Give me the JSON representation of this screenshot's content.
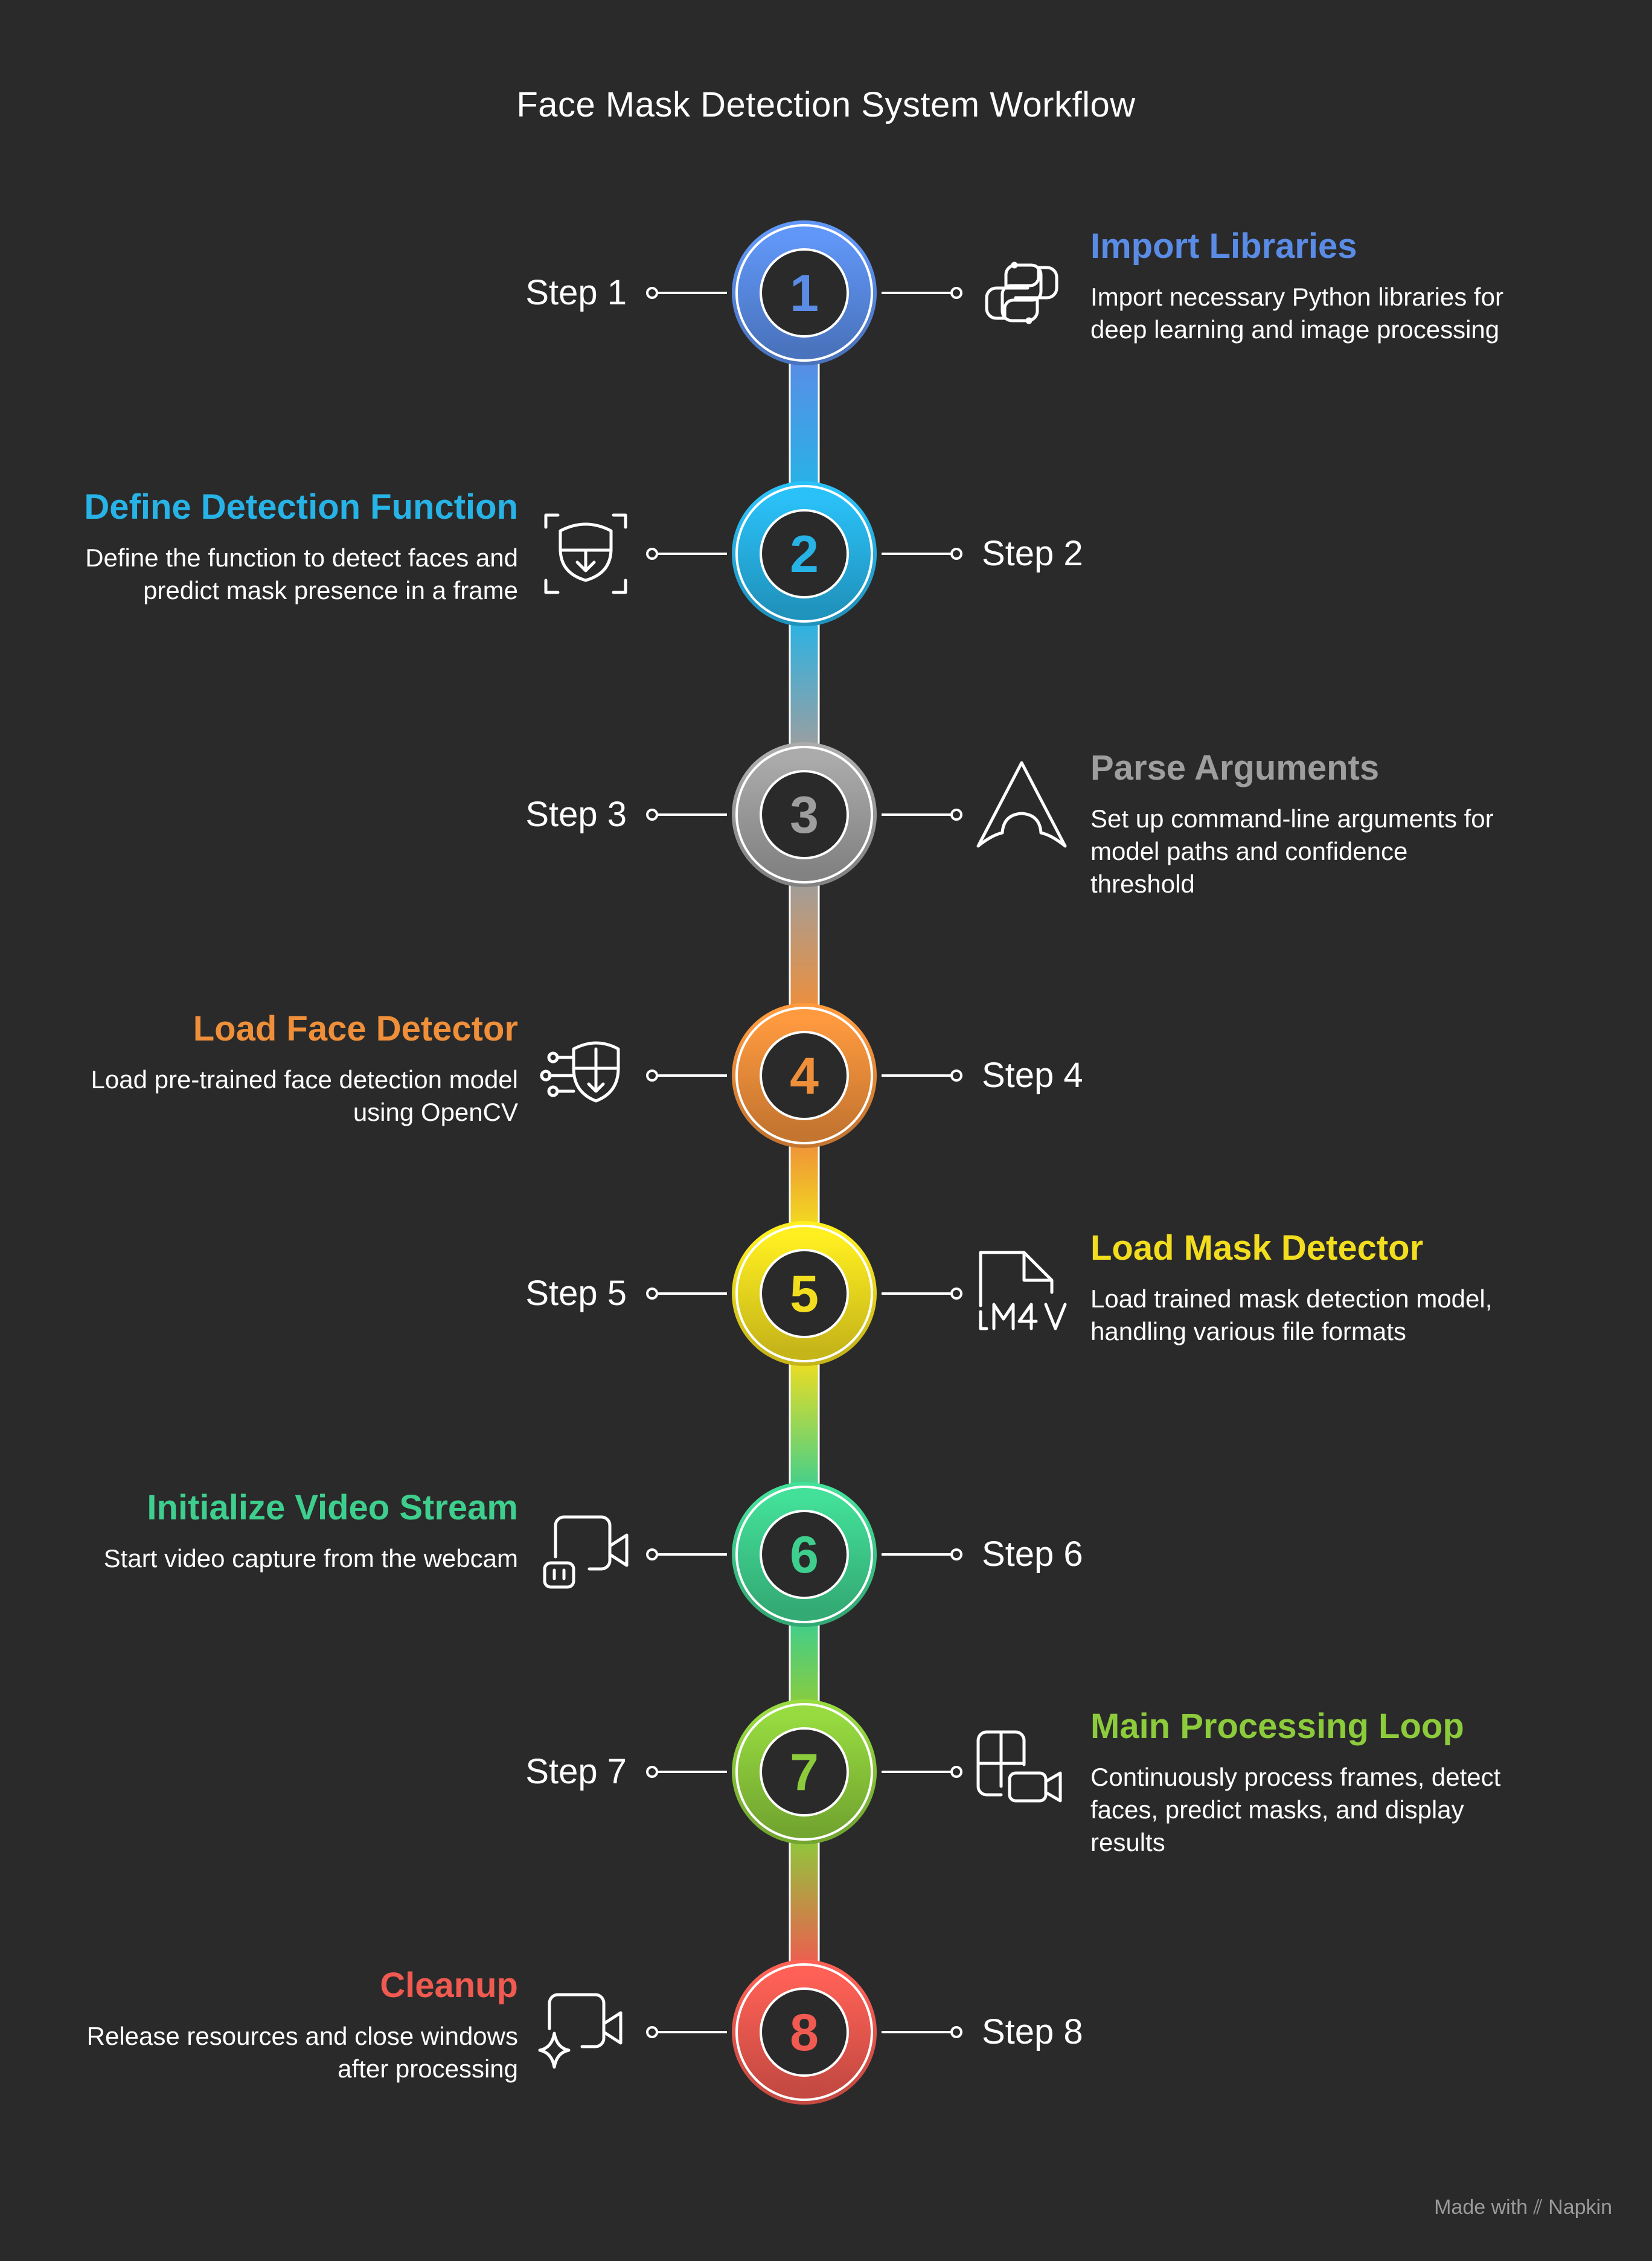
{
  "title": "Face Mask Detection System Workflow",
  "steps": [
    {
      "number": "1",
      "label": "Step 1",
      "heading": "Import Libraries",
      "description": "Import necessary Python libraries for deep learning and image processing",
      "color": "#5a8ce6",
      "icon": "python-logo-icon"
    },
    {
      "number": "2",
      "label": "Step 2",
      "heading": "Define Detection Function",
      "description": "Define the function to detect faces and predict mask presence in a frame",
      "color": "#27b3e6",
      "icon": "face-scan-mask-icon"
    },
    {
      "number": "3",
      "label": "Step 3",
      "heading": "Parse Arguments",
      "description": "Set up command-line arguments for model paths and confidence threshold",
      "color": "#9e9e9e",
      "icon": "arch-logo-icon"
    },
    {
      "number": "4",
      "label": "Step 4",
      "heading": "Load Face Detector",
      "description": "Load pre-trained face detection model using OpenCV",
      "color": "#ef8f3a",
      "icon": "ai-face-detector-icon"
    },
    {
      "number": "5",
      "label": "Step 5",
      "heading": "Load Mask Detector",
      "description": "Load trained mask detection model, handling various file formats",
      "color": "#f2dd1e",
      "icon": "file-m4v-icon"
    },
    {
      "number": "6",
      "label": "Step 6",
      "heading": "Initialize Video Stream",
      "description": "Start video capture from the webcam",
      "color": "#3ecf8e",
      "icon": "video-bot-icon"
    },
    {
      "number": "7",
      "label": "Step 7",
      "heading": "Main Processing Loop",
      "description": "Continuously process frames, detect faces, predict masks, and display results",
      "color": "#8ccb3b",
      "icon": "video-grid-icon"
    },
    {
      "number": "8",
      "label": "Step 8",
      "heading": "Cleanup",
      "description": "Release resources and close windows after processing",
      "color": "#f05a50",
      "icon": "video-sparkle-icon"
    }
  ],
  "footer": {
    "prefix": "Made with",
    "brand": "Napkin"
  }
}
